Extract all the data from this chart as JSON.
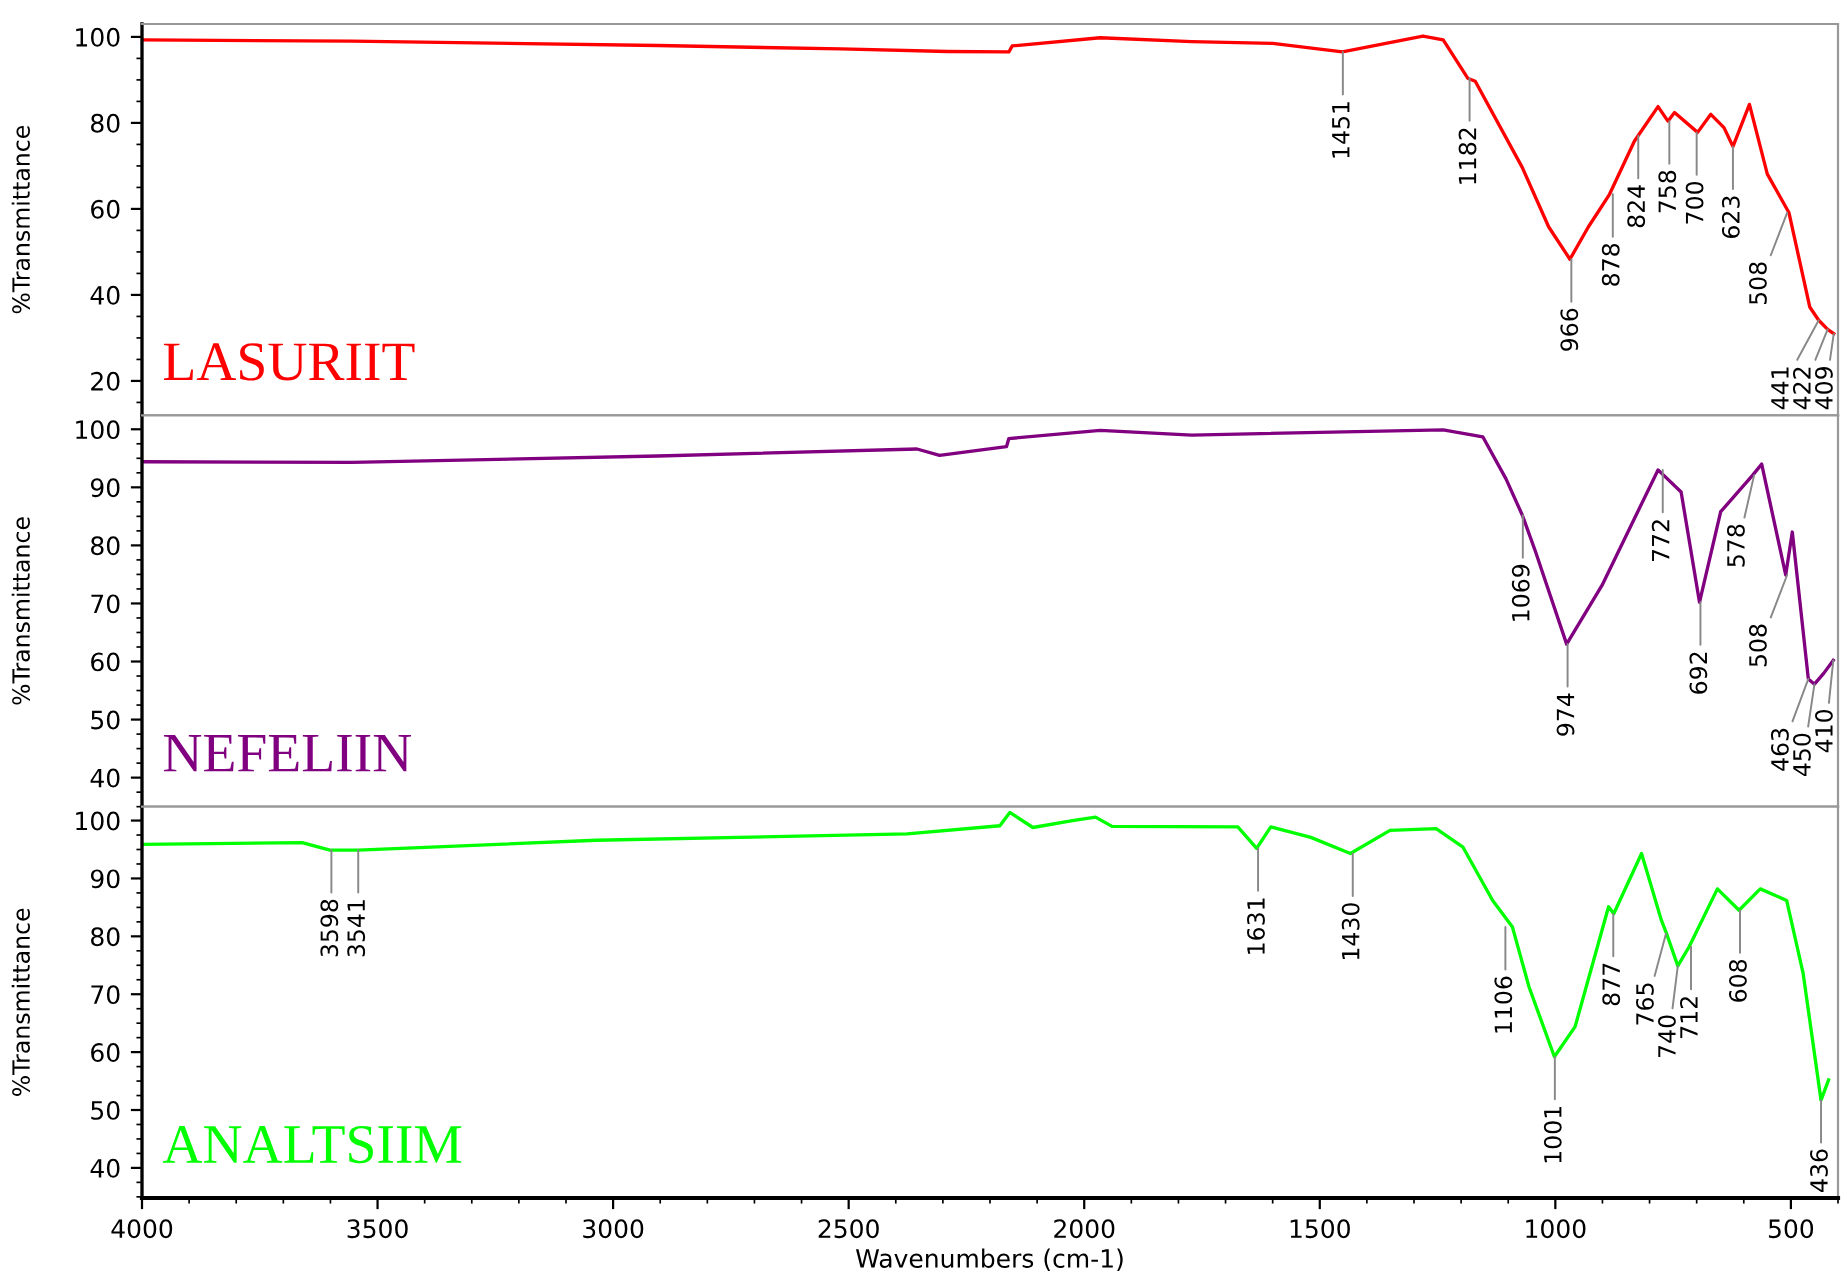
{
  "chart_data": [
    {
      "type": "line",
      "ylabel": "%Transmittance",
      "xlim": [
        4000,
        400
      ],
      "ylim": [
        12,
        103
      ],
      "xticks": [
        4000,
        3500,
        3000,
        2500,
        2000,
        1500,
        1000,
        500
      ],
      "yticks": [
        20,
        40,
        60,
        80,
        100
      ],
      "tick_labels": "y",
      "grid": false,
      "series": [
        {
          "name": "LASURIIT",
          "color": "#ff0000",
          "x": [
            4000,
            3554,
            2905,
            2517,
            2290,
            2160,
            2153,
            1966,
            1772,
            1600,
            1452,
            1281,
            1238,
            1186,
            1170,
            1070,
            1014,
            969,
            930,
            885,
            832,
            782,
            761,
            747,
            698,
            670,
            642,
            623,
            588,
            550,
            504,
            460,
            441,
            422,
            409
          ],
          "values": [
            99.3,
            99.0,
            98.0,
            97.2,
            96.6,
            96.5,
            97.9,
            99.8,
            98.9,
            98.5,
            96.5,
            100.2,
            99.3,
            90.4,
            89.7,
            69.6,
            55.8,
            48.3,
            55.8,
            63.4,
            75.8,
            83.8,
            80.4,
            82.4,
            77.8,
            82.0,
            78.9,
            74.5,
            84.3,
            68.1,
            59.1,
            37.2,
            34.1,
            32.0,
            31.0
          ]
        }
      ],
      "annotations": [
        {
          "text": "1451",
          "x": 1451,
          "y": 96.5
        },
        {
          "text": "1182",
          "x": 1182,
          "y": 90.4
        },
        {
          "text": "966",
          "x": 966,
          "y": 48.3
        },
        {
          "text": "878",
          "x": 878,
          "y": 63.4
        },
        {
          "text": "824",
          "x": 824,
          "y": 77.0
        },
        {
          "text": "758",
          "x": 758,
          "y": 80.4
        },
        {
          "text": "700",
          "x": 700,
          "y": 77.8
        },
        {
          "text": "623",
          "x": 623,
          "y": 74.5
        },
        {
          "text": "508",
          "x": 508,
          "y": 59.1
        },
        {
          "text": "441",
          "x": 441,
          "y": 34.1
        },
        {
          "text": "422",
          "x": 422,
          "y": 32.0
        },
        {
          "text": "409",
          "x": 409,
          "y": 31.0
        }
      ]
    },
    {
      "type": "line",
      "ylabel": "%Transmittance",
      "xlim": [
        4000,
        400
      ],
      "ylim": [
        35,
        102.4
      ],
      "xticks": [
        4000,
        3500,
        3000,
        2500,
        2000,
        1500,
        1000,
        500
      ],
      "yticks": [
        40,
        50,
        60,
        70,
        80,
        90,
        100
      ],
      "tick_labels": "y",
      "grid": false,
      "series": [
        {
          "name": "NEFELIIN",
          "color": "#800080",
          "x": [
            4000,
            3554,
            2905,
            2355,
            2307,
            2165,
            2160,
            1966,
            1772,
            1238,
            1154,
            1105,
            1070,
            1042,
            976,
            901,
            782,
            733,
            694,
            649,
            581,
            562,
            511,
            497,
            463,
            450,
            430,
            410
          ],
          "values": [
            94.4,
            94.3,
            95.4,
            96.6,
            95.5,
            97.0,
            98.4,
            99.8,
            99.0,
            99.9,
            98.7,
            91.5,
            85.2,
            78.9,
            63.0,
            73.1,
            93.0,
            89.2,
            70.2,
            85.8,
            92.1,
            94.0,
            74.9,
            82.3,
            57.0,
            56.1,
            58.0,
            60.2
          ]
        }
      ],
      "annotations": [
        {
          "text": "1069",
          "x": 1069,
          "y": 85.2
        },
        {
          "text": "974",
          "x": 974,
          "y": 63.0
        },
        {
          "text": "772",
          "x": 772,
          "y": 93.0
        },
        {
          "text": "692",
          "x": 692,
          "y": 70.2
        },
        {
          "text": "578",
          "x": 578,
          "y": 92.1
        },
        {
          "text": "508",
          "x": 508,
          "y": 74.9
        },
        {
          "text": "463",
          "x": 463,
          "y": 57.0
        },
        {
          "text": "450",
          "x": 450,
          "y": 56.1
        },
        {
          "text": "410",
          "x": 410,
          "y": 60.2
        }
      ]
    },
    {
      "type": "line",
      "ylabel": "%Transmittance",
      "xlabel": "Wavenumbers (cm-1)",
      "xlim": [
        4000,
        400
      ],
      "ylim": [
        34.8,
        102.4
      ],
      "xticks": [
        4000,
        3500,
        3000,
        2500,
        2000,
        1500,
        1000,
        500
      ],
      "yticks": [
        40,
        50,
        60,
        70,
        80,
        90,
        100
      ],
      "grid": false,
      "series": [
        {
          "name": "ANALTSIIM",
          "color": "#00ff00",
          "x": [
            4000,
            3660,
            3601,
            3541,
            3036,
            2376,
            2179,
            2158,
            2109,
            2025,
            1976,
            1941,
            1674,
            1634,
            1604,
            1519,
            1435,
            1351,
            1253,
            1196,
            1133,
            1091,
            1056,
            1002,
            958,
            887,
            876,
            817,
            775,
            764,
            740,
            716,
            656,
            610,
            565,
            509,
            474,
            436,
            420
          ],
          "values": [
            95.9,
            96.2,
            94.9,
            94.9,
            96.6,
            97.7,
            99.1,
            101.4,
            98.8,
            100.0,
            100.6,
            99.0,
            98.9,
            95.2,
            98.9,
            97.1,
            94.3,
            98.3,
            98.6,
            95.4,
            86.2,
            81.6,
            71.3,
            59.2,
            64.4,
            85.1,
            83.9,
            94.3,
            82.8,
            80.5,
            74.9,
            78.2,
            88.2,
            84.5,
            88.2,
            86.2,
            73.6,
            51.7,
            55.2
          ]
        }
      ],
      "annotations": [
        {
          "text": "3598",
          "x": 3598,
          "y": 94.9
        },
        {
          "text": "3541",
          "x": 3541,
          "y": 94.9
        },
        {
          "text": "1631",
          "x": 1631,
          "y": 95.2
        },
        {
          "text": "1430",
          "x": 1430,
          "y": 94.3
        },
        {
          "text": "1106",
          "x": 1106,
          "y": 81.6
        },
        {
          "text": "1001",
          "x": 1001,
          "y": 59.2
        },
        {
          "text": "877",
          "x": 877,
          "y": 83.9
        },
        {
          "text": "765",
          "x": 765,
          "y": 80.5
        },
        {
          "text": "740",
          "x": 740,
          "y": 74.9
        },
        {
          "text": "712",
          "x": 712,
          "y": 78.2
        },
        {
          "text": "608",
          "x": 608,
          "y": 84.5
        },
        {
          "text": "436",
          "x": 436,
          "y": 51.7
        }
      ]
    }
  ]
}
